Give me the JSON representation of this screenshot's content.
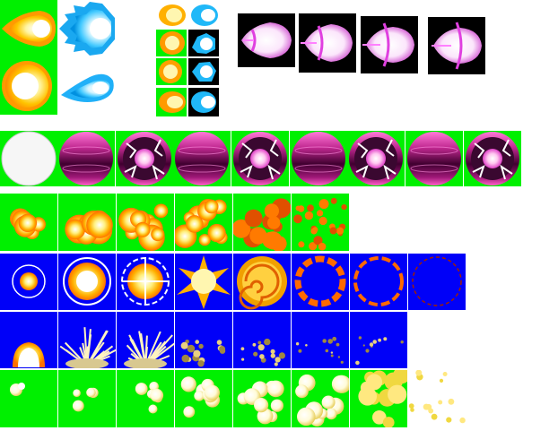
{
  "sheet": {
    "background": "#ffffff",
    "colors": {
      "green": "#00f000",
      "blue": "#0000f8",
      "black": "#000000",
      "fire_yellow": "#ffd000",
      "fire_orange": "#ff8a00",
      "ice_blue": "#22c8ff",
      "orb_pink": "#e040c8",
      "orb_dark": "#300020",
      "flash_white": "#f6f6f6"
    },
    "groups": [
      {
        "name": "fireball-large",
        "frames": 2,
        "icon": "fireball-icon"
      },
      {
        "name": "iceball-large",
        "frames": 2,
        "icon": "iceball-icon"
      },
      {
        "name": "mini-fireballs",
        "frames": 4,
        "icon": "fireball-icon"
      },
      {
        "name": "mini-iceballs",
        "frames": 4,
        "icon": "iceball-icon"
      },
      {
        "name": "pink-energy-shots",
        "frames": 4,
        "icon": "energy-shot-icon"
      },
      {
        "name": "dark-orb",
        "frames": 9,
        "icon": "orb-icon"
      },
      {
        "name": "fire-explosion",
        "frames": 6,
        "icon": "explosion-icon"
      },
      {
        "name": "blue-shockwave",
        "frames": 8,
        "icon": "shockwave-icon"
      },
      {
        "name": "ground-blast",
        "frames": 7,
        "icon": "ground-blast-icon"
      },
      {
        "name": "smoke-burst",
        "frames": 8,
        "icon": "smoke-icon"
      }
    ]
  }
}
